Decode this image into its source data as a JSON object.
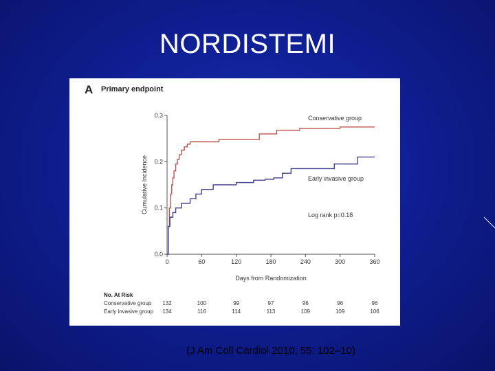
{
  "slide": {
    "title": "NORDISTEMI",
    "citation": "(J Am Coll Cardiol 2010; 55: 102–10)"
  },
  "chart_data": {
    "type": "line",
    "panel_letter": "A",
    "title": "Primary endpoint",
    "xlabel": "Days from Randomization",
    "ylabel": "Cumulative Incidence",
    "xlim": [
      0,
      360
    ],
    "ylim": [
      0.0,
      0.3
    ],
    "x_ticks": [
      0,
      60,
      120,
      180,
      240,
      300,
      360
    ],
    "y_ticks": [
      0.0,
      0.1,
      0.2,
      0.3
    ],
    "x_tick_labels": [
      "0",
      "60",
      "120",
      "180",
      "240",
      "300",
      "360"
    ],
    "y_tick_labels": [
      "0.0",
      "0.1",
      "0.2",
      "0.3"
    ],
    "grid": false,
    "annotation": "Log rank p=0.18",
    "series": [
      {
        "name": "Conservative group",
        "color": "#c0504d",
        "points": [
          [
            0,
            0
          ],
          [
            2,
            0.06
          ],
          [
            4,
            0.1
          ],
          [
            6,
            0.13
          ],
          [
            8,
            0.15
          ],
          [
            10,
            0.165
          ],
          [
            12,
            0.18
          ],
          [
            15,
            0.195
          ],
          [
            18,
            0.205
          ],
          [
            21,
            0.215
          ],
          [
            25,
            0.225
          ],
          [
            30,
            0.232
          ],
          [
            35,
            0.238
          ],
          [
            40,
            0.243
          ],
          [
            60,
            0.243
          ],
          [
            80,
            0.243
          ],
          [
            90,
            0.248
          ],
          [
            120,
            0.248
          ],
          [
            150,
            0.248
          ],
          [
            160,
            0.26
          ],
          [
            180,
            0.26
          ],
          [
            190,
            0.268
          ],
          [
            230,
            0.272
          ],
          [
            260,
            0.272
          ],
          [
            300,
            0.275
          ],
          [
            360,
            0.275
          ]
        ]
      },
      {
        "name": "Early invasive group",
        "color": "#3f3f8c",
        "points": [
          [
            0,
            0
          ],
          [
            2,
            0.06
          ],
          [
            5,
            0.08
          ],
          [
            10,
            0.09
          ],
          [
            15,
            0.1
          ],
          [
            25,
            0.11
          ],
          [
            40,
            0.12
          ],
          [
            50,
            0.13
          ],
          [
            60,
            0.14
          ],
          [
            80,
            0.15
          ],
          [
            120,
            0.155
          ],
          [
            150,
            0.16
          ],
          [
            170,
            0.162
          ],
          [
            185,
            0.165
          ],
          [
            200,
            0.175
          ],
          [
            215,
            0.185
          ],
          [
            240,
            0.185
          ],
          [
            290,
            0.195
          ],
          [
            330,
            0.21
          ],
          [
            360,
            0.21
          ]
        ]
      }
    ],
    "at_risk": {
      "header": "No. At Risk",
      "rows": [
        {
          "label": "Conservative group",
          "values": [
            "132",
            "100",
            "99",
            "97",
            "96",
            "96",
            "96"
          ]
        },
        {
          "label": "Early invasive group",
          "values": [
            "134",
            "116",
            "114",
            "113",
            "109",
            "109",
            "106"
          ]
        }
      ]
    }
  }
}
